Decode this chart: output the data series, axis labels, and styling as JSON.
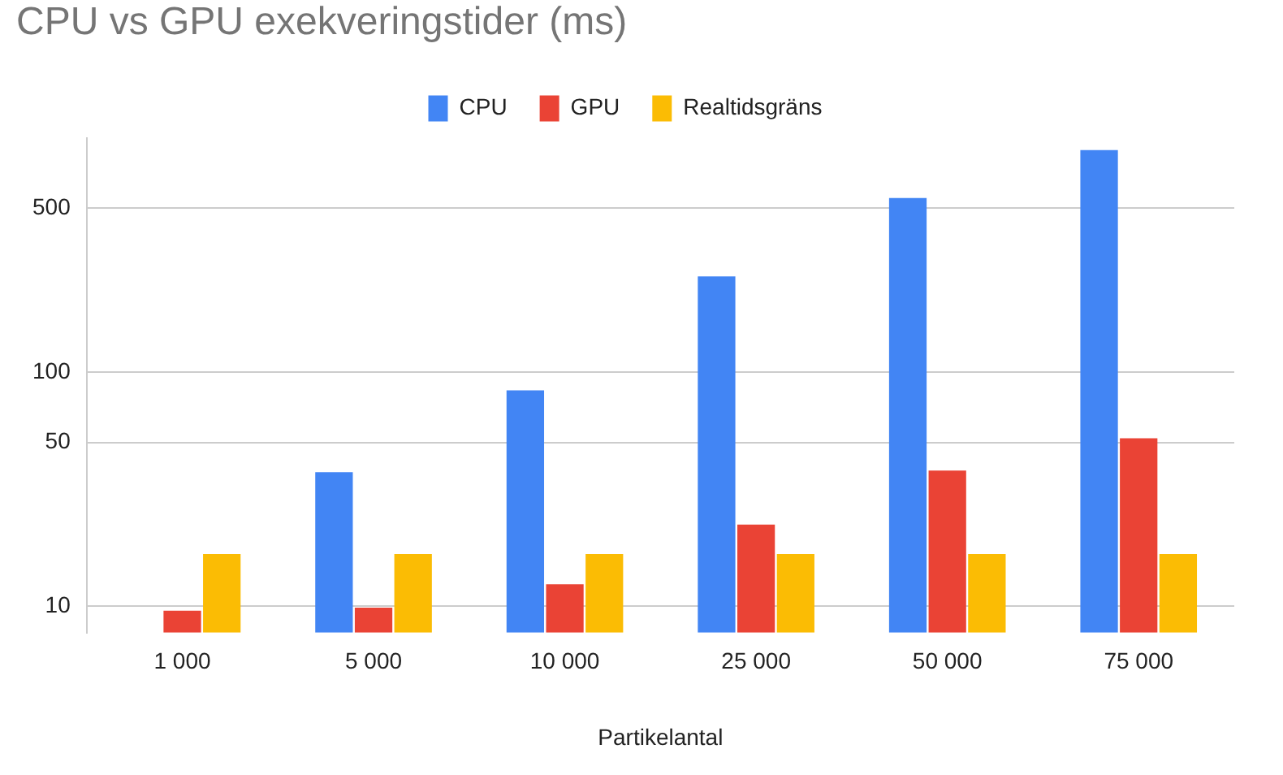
{
  "chart_data": {
    "type": "bar",
    "title": "CPU vs GPU exekveringstider (ms)",
    "xlabel": "Partikelantal",
    "categories": [
      "1 000",
      "5 000",
      "10 000",
      "25 000",
      "50 000",
      "75 000"
    ],
    "series": [
      {
        "name": "CPU",
        "color": "#4285f4",
        "values": [
          null,
          37.3,
          83.4,
          256,
          553,
          886
        ]
      },
      {
        "name": "GPU",
        "color": "#ea4335",
        "values": [
          9.55,
          9.85,
          12.4,
          22.3,
          37.9,
          52.1
        ]
      },
      {
        "name": "Realtidsgräns",
        "color": "#fbbc04",
        "values": [
          16.7,
          16.7,
          16.7,
          16.7,
          16.7,
          16.7
        ]
      }
    ],
    "log": "y",
    "ylim": [
      7.7,
      1000
    ],
    "yticks": [
      10,
      50,
      100,
      500
    ],
    "grid": "y",
    "legend": "top"
  }
}
